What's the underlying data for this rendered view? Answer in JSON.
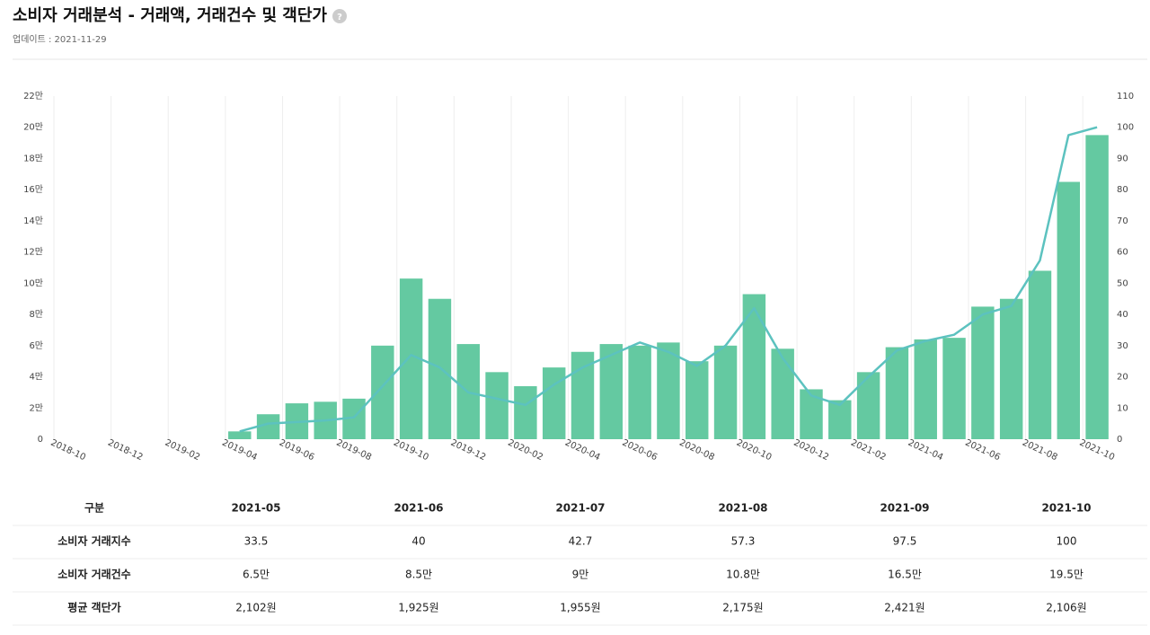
{
  "header": {
    "title": "소비자 거래분석 - 거래액, 거래건수 및 객단가",
    "help": "?",
    "updated": "업데이트 : 2021-11-29"
  },
  "chart_data": {
    "type": "bar-line",
    "categories": [
      "2018-10",
      null,
      "2018-12",
      null,
      "2019-02",
      null,
      "2019-04",
      null,
      "2019-06",
      null,
      "2019-08",
      null,
      "2019-10",
      null,
      "2019-12",
      null,
      "2020-02",
      null,
      "2020-04",
      null,
      "2020-06",
      null,
      "2020-08",
      null,
      "2020-10",
      null,
      "2020-12",
      null,
      "2021-02",
      null,
      "2021-04",
      null,
      "2021-06",
      null,
      "2021-08",
      null,
      "2021-10"
    ],
    "series": [
      {
        "name": "소비자 거래건수",
        "type": "bar",
        "color": "#64c9a1",
        "values": [
          null,
          null,
          null,
          null,
          null,
          null,
          0.5,
          1.6,
          2.3,
          2.4,
          2.6,
          6.0,
          10.3,
          9.0,
          6.1,
          4.3,
          3.4,
          4.6,
          5.6,
          6.1,
          6.0,
          6.2,
          5.0,
          6.0,
          9.3,
          5.8,
          3.2,
          2.5,
          4.3,
          5.9,
          6.4,
          6.5,
          8.5,
          9.0,
          10.8,
          16.5,
          19.5
        ]
      },
      {
        "name": "소비자 거래지수",
        "type": "line",
        "axis": "y2",
        "color": "#5cc2bf",
        "values": [
          null,
          null,
          null,
          null,
          null,
          null,
          2.5,
          5,
          5.5,
          6,
          7,
          17,
          27,
          23,
          15,
          13,
          11,
          17.5,
          23,
          27,
          31,
          28,
          23.5,
          30,
          42,
          26,
          14,
          11,
          20,
          28.5,
          31.5,
          33.5,
          40,
          42.7,
          57.3,
          97.5,
          100
        ]
      }
    ],
    "ylim": [
      0,
      22
    ],
    "yticks": [
      0,
      {
        "value": 2,
        "label": "2만"
      },
      {
        "value": 4,
        "label": "4만"
      },
      {
        "value": 6,
        "label": "6만"
      },
      {
        "value": 8,
        "label": "8만"
      },
      {
        "value": 10,
        "label": "10만"
      },
      {
        "value": 12,
        "label": "12만"
      },
      {
        "value": 14,
        "label": "14만"
      },
      {
        "value": 16,
        "label": "16만"
      },
      {
        "value": 18,
        "label": "18만"
      },
      {
        "value": 20,
        "label": "20만"
      },
      {
        "value": 22,
        "label": "22만"
      }
    ],
    "y2lim": [
      0,
      110
    ],
    "y2ticks": [
      0,
      10,
      20,
      30,
      40,
      50,
      60,
      70,
      80,
      90,
      100,
      110
    ]
  },
  "table": {
    "header": [
      "구분",
      "2021-05",
      "2021-06",
      "2021-07",
      "2021-08",
      "2021-09",
      "2021-10"
    ],
    "rows": [
      [
        "소비자 거래지수",
        "33.5",
        "40",
        "42.7",
        "57.3",
        "97.5",
        "100"
      ],
      [
        "소비자 거래건수",
        "6.5만",
        "8.5만",
        "9만",
        "10.8만",
        "16.5만",
        "19.5만"
      ],
      [
        "평균 객단가",
        "2,102원",
        "1,925원",
        "1,955원",
        "2,175원",
        "2,421원",
        "2,106원"
      ]
    ]
  }
}
